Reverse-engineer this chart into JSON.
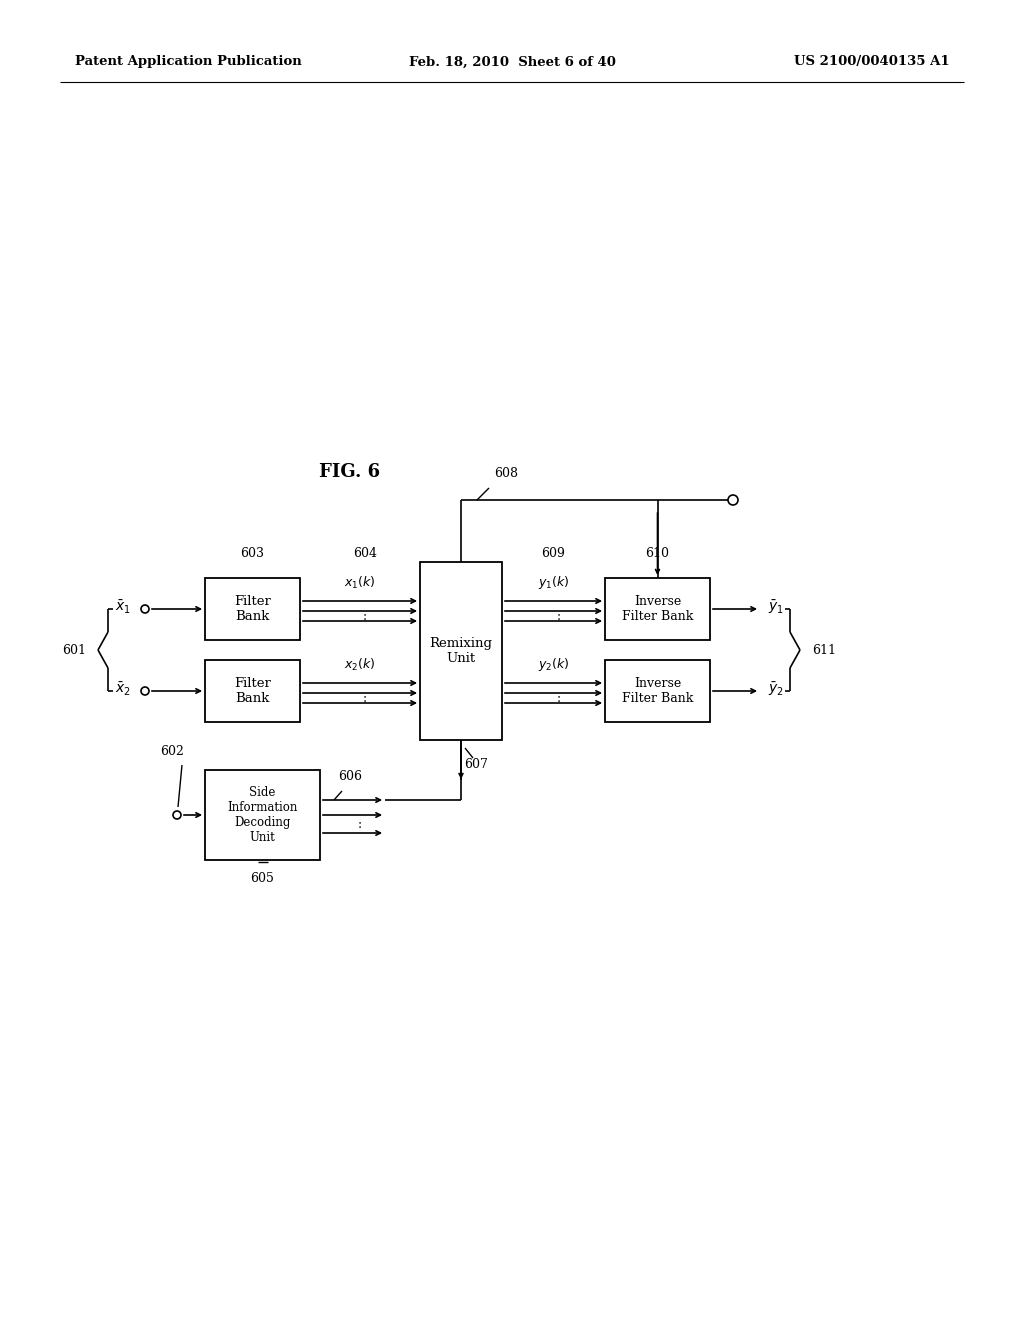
{
  "background_color": "#ffffff",
  "header_left": "Patent Application Publication",
  "header_center": "Feb. 18, 2010  Sheet 6 of 40",
  "header_right": "US 2100/0040135 A1",
  "fig_label": "FIG. 6",
  "figw": 10.24,
  "figh": 13.2,
  "dpi": 100
}
